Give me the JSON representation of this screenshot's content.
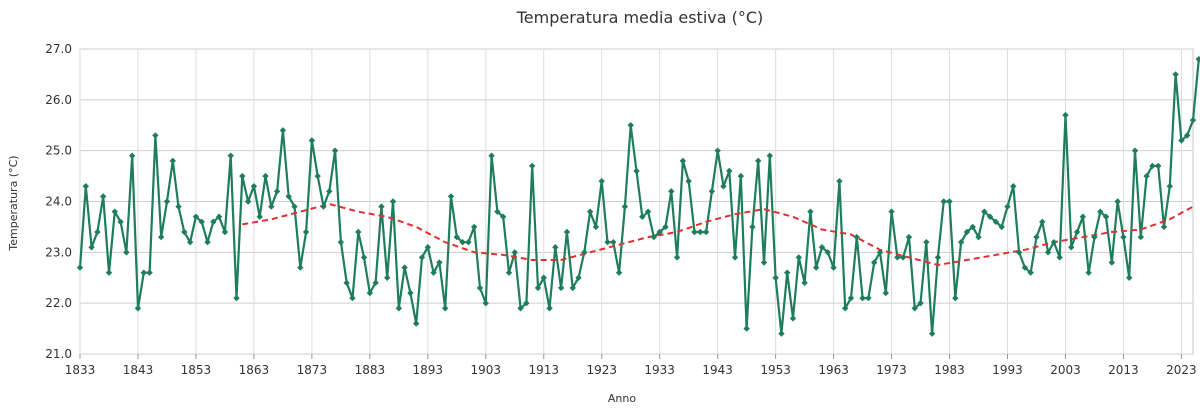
{
  "chart_data": {
    "type": "line",
    "title": "Temperatura media estiva (°C)",
    "xlabel": "Anno",
    "ylabel": "Temperatura (°C)",
    "xlim": [
      1833,
      2025
    ],
    "ylim": [
      21.0,
      27.0
    ],
    "x_ticks": [
      "1833",
      "1843",
      "1853",
      "1863",
      "1873",
      "1883",
      "1893",
      "1903",
      "1913",
      "1923",
      "1933",
      "1943",
      "1953",
      "1963",
      "1973",
      "1983",
      "1993",
      "2003",
      "2013",
      "2023"
    ],
    "y_ticks": [
      "21.0",
      "22.0",
      "23.0",
      "24.0",
      "25.0",
      "26.0",
      "27.0"
    ],
    "grid": true,
    "legend": "none",
    "series": [
      {
        "color": "#1e7d5b",
        "style": "solid-with-diamond-markers",
        "x_start": 1833,
        "values": [
          22.7,
          24.3,
          23.1,
          23.4,
          24.1,
          22.6,
          23.8,
          23.6,
          23.0,
          24.9,
          21.9,
          22.6,
          22.6,
          25.3,
          23.3,
          24.0,
          24.8,
          23.9,
          23.4,
          23.2,
          23.7,
          23.6,
          23.2,
          23.6,
          23.7,
          23.4,
          24.9,
          22.1,
          24.5,
          24.0,
          24.3,
          23.7,
          24.5,
          23.9,
          24.2,
          25.4,
          24.1,
          23.9,
          22.7,
          23.4,
          25.2,
          24.5,
          23.9,
          24.2,
          25.0,
          23.2,
          22.4,
          22.1,
          23.4,
          22.9,
          22.2,
          22.4,
          23.9,
          22.5,
          24.0,
          21.9,
          22.7,
          22.2,
          21.6,
          22.9,
          23.1,
          22.6,
          22.8,
          21.9,
          24.1,
          23.3,
          23.2,
          23.2,
          23.5,
          22.3,
          22.0,
          24.9,
          23.8,
          23.7,
          22.6,
          23.0,
          21.9,
          22.0,
          24.7,
          22.3,
          22.5,
          21.9,
          23.1,
          22.3,
          23.4,
          22.3,
          22.5,
          23.0,
          23.8,
          23.5,
          24.4,
          23.2,
          23.2,
          22.6,
          23.9,
          25.5,
          24.6,
          23.7,
          23.8,
          23.3,
          23.4,
          23.5,
          24.2,
          22.9,
          24.8,
          24.4,
          23.4,
          23.4,
          23.4,
          24.2,
          25.0,
          24.3,
          24.6,
          22.9,
          24.5,
          21.5,
          23.5,
          24.8,
          22.8,
          24.9,
          22.5,
          21.4,
          22.6,
          21.7,
          22.9,
          22.4,
          23.8,
          22.7,
          23.1,
          23.0,
          22.7,
          24.4,
          21.9,
          22.1,
          23.3,
          22.1,
          22.1,
          22.8,
          23.0,
          22.2,
          23.8,
          22.9,
          22.9,
          23.3,
          21.9,
          22.0,
          23.2,
          21.4,
          22.9,
          24.0,
          24.0,
          22.1,
          23.2,
          23.4,
          23.5,
          23.3,
          23.8,
          23.7,
          23.6,
          23.5,
          23.9,
          24.3,
          23.0,
          22.7,
          22.6,
          23.3,
          23.6,
          23.0,
          23.2,
          22.9,
          25.7,
          23.1,
          23.4,
          23.7,
          22.6,
          23.3,
          23.8,
          23.7,
          22.8,
          24.0,
          23.3,
          22.5,
          25.0,
          23.3,
          24.5,
          24.7,
          24.7,
          23.5,
          24.3,
          26.5,
          25.2,
          25.3,
          25.6,
          26.8
        ]
      },
      {
        "color": "#e03030",
        "style": "dashed",
        "x": [
          1861,
          1866,
          1871,
          1876,
          1881,
          1886,
          1891,
          1896,
          1901,
          1906,
          1911,
          1916,
          1921,
          1926,
          1931,
          1936,
          1941,
          1946,
          1951,
          1956,
          1961,
          1966,
          1971,
          1976,
          1981,
          1986,
          1991,
          1996,
          2001,
          2006,
          2011,
          2016,
          2021,
          2025
        ],
        "values": [
          23.55,
          23.65,
          23.8,
          23.95,
          23.8,
          23.7,
          23.5,
          23.2,
          23.0,
          22.95,
          22.85,
          22.85,
          23.0,
          23.15,
          23.3,
          23.4,
          23.6,
          23.75,
          23.85,
          23.7,
          23.45,
          23.35,
          23.05,
          22.9,
          22.75,
          22.85,
          22.95,
          23.05,
          23.2,
          23.3,
          23.4,
          23.45,
          23.65,
          23.9
        ]
      }
    ]
  }
}
